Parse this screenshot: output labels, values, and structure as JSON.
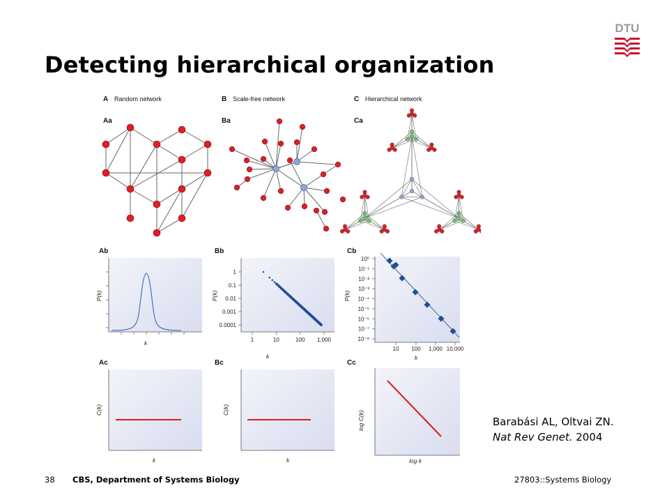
{
  "slide": {
    "title": "Detecting hierarchical organization",
    "logo_text": "DTU"
  },
  "figure": {
    "panels": [
      {
        "id": "A",
        "title": "Random network"
      },
      {
        "id": "B",
        "title": "Scale-free network"
      },
      {
        "id": "C",
        "title": "Hierarchical network"
      }
    ],
    "subpanel_labels": [
      "Aa",
      "Ba",
      "Ca",
      "Ab",
      "Bb",
      "Cb",
      "Ac",
      "Bc",
      "Cc"
    ],
    "axis_labels": {
      "pk": "P(k)",
      "k": "k",
      "ck": "C(k)",
      "logck": "log C(k)",
      "logk": "log k"
    },
    "bb_y_ticks": [
      "1",
      "0.1",
      "0.01",
      "0.001",
      "0.0001"
    ],
    "bb_x_ticks": [
      "1",
      "10",
      "100",
      "1,000"
    ],
    "cb_y_ticks": [
      "10⁰",
      "10⁻¹",
      "10⁻²",
      "10⁻³",
      "10⁻⁴",
      "10⁻⁵",
      "10⁻⁶",
      "10⁻⁷",
      "10⁻⁸"
    ],
    "cb_x_ticks": [
      "10",
      "100",
      "1,000",
      "10,000"
    ],
    "colors": {
      "node_red": "#dd1f26",
      "node_blue": "#8fa6d6",
      "node_green": "#6cc36a",
      "series_blue": "#1f4e96",
      "line_red": "#e01b1b",
      "plot_bg": "#e4e7f3"
    }
  },
  "citation": {
    "authors": "Barabási AL, Oltvai ZN.",
    "journal": "Nat Rev Genet.",
    "year": "2004"
  },
  "footer": {
    "page_number": "38",
    "department": "CBS, Department of Systems Biology",
    "course": "27803::Systems Biology"
  }
}
